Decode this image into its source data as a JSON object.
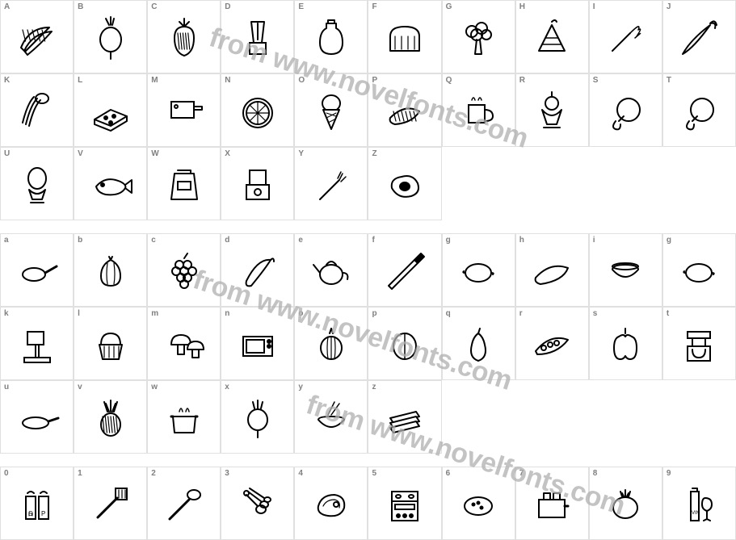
{
  "watermark_text": "from www.novelfonts.com",
  "watermark_color": "#b0b0b0",
  "cell_border_color": "#e0e0e0",
  "label_color": "#808080",
  "label_fontsize": 10,
  "glyph_stroke": "#000000",
  "sections": [
    {
      "rows": 3,
      "cells": [
        {
          "label": "A",
          "icon": "bananas"
        },
        {
          "label": "B",
          "icon": "radish"
        },
        {
          "label": "C",
          "icon": "strawberry"
        },
        {
          "label": "D",
          "icon": "blender"
        },
        {
          "label": "E",
          "icon": "milk-jug"
        },
        {
          "label": "F",
          "icon": "bread"
        },
        {
          "label": "G",
          "icon": "broccoli"
        },
        {
          "label": "H",
          "icon": "cake-slice"
        },
        {
          "label": "I",
          "icon": "whisk"
        },
        {
          "label": "J",
          "icon": "carrot"
        },
        {
          "label": "K",
          "icon": "celery"
        },
        {
          "label": "L",
          "icon": "cheese"
        },
        {
          "label": "M",
          "icon": "cleaver"
        },
        {
          "label": "N",
          "icon": "orange-slice"
        },
        {
          "label": "O",
          "icon": "ice-cream-cone"
        },
        {
          "label": "P",
          "icon": "cucumber"
        },
        {
          "label": "Q",
          "icon": "mug"
        },
        {
          "label": "R",
          "icon": "sundae"
        },
        {
          "label": "S",
          "icon": "drumstick"
        },
        {
          "label": "T",
          "icon": "drumstick"
        },
        {
          "label": "U",
          "icon": "egg-cup"
        },
        {
          "label": "V",
          "icon": "fish"
        },
        {
          "label": "W",
          "icon": "flour-bag"
        },
        {
          "label": "X",
          "icon": "food-processor"
        },
        {
          "label": "Y",
          "icon": "fork"
        },
        {
          "label": "Z",
          "icon": "fried-egg"
        },
        {
          "empty": true
        },
        {
          "empty": true
        },
        {
          "empty": true
        },
        {
          "empty": true
        }
      ]
    },
    {
      "rows": 3,
      "cells": [
        {
          "label": "a",
          "icon": "pan"
        },
        {
          "label": "b",
          "icon": "garlic"
        },
        {
          "label": "c",
          "icon": "grapes"
        },
        {
          "label": "d",
          "icon": "chili"
        },
        {
          "label": "e",
          "icon": "kettle"
        },
        {
          "label": "f",
          "icon": "knife"
        },
        {
          "label": "g",
          "icon": "lemon"
        },
        {
          "label": "h",
          "icon": "zucchini"
        },
        {
          "label": "i",
          "icon": "bowl"
        },
        {
          "label": "g",
          "icon": "lemon"
        },
        {
          "label": "k",
          "icon": "mixer"
        },
        {
          "label": "l",
          "icon": "muffin"
        },
        {
          "label": "m",
          "icon": "mushrooms"
        },
        {
          "label": "n",
          "icon": "microwave"
        },
        {
          "label": "o",
          "icon": "onion"
        },
        {
          "label": "p",
          "icon": "nut"
        },
        {
          "label": "q",
          "icon": "pear"
        },
        {
          "label": "r",
          "icon": "pea-pod"
        },
        {
          "label": "s",
          "icon": "bell-pepper"
        },
        {
          "label": "t",
          "icon": "coffee-maker"
        },
        {
          "label": "u",
          "icon": "shallow-pan"
        },
        {
          "label": "v",
          "icon": "pineapple"
        },
        {
          "label": "w",
          "icon": "pot"
        },
        {
          "label": "x",
          "icon": "turnip"
        },
        {
          "label": "y",
          "icon": "rice-bowl"
        },
        {
          "label": "z",
          "icon": "sandwich"
        },
        {
          "empty": true
        },
        {
          "empty": true
        },
        {
          "empty": true
        },
        {
          "empty": true
        }
      ]
    },
    {
      "rows": 1,
      "cells": [
        {
          "label": "0",
          "icon": "shakers"
        },
        {
          "label": "1",
          "icon": "spatula"
        },
        {
          "label": "2",
          "icon": "spoon"
        },
        {
          "label": "3",
          "icon": "measuring-spoons"
        },
        {
          "label": "4",
          "icon": "steak"
        },
        {
          "label": "5",
          "icon": "stove"
        },
        {
          "label": "6",
          "icon": "potato"
        },
        {
          "label": "7",
          "icon": "toaster"
        },
        {
          "label": "8",
          "icon": "tomato"
        },
        {
          "label": "9",
          "icon": "wine"
        }
      ]
    }
  ]
}
